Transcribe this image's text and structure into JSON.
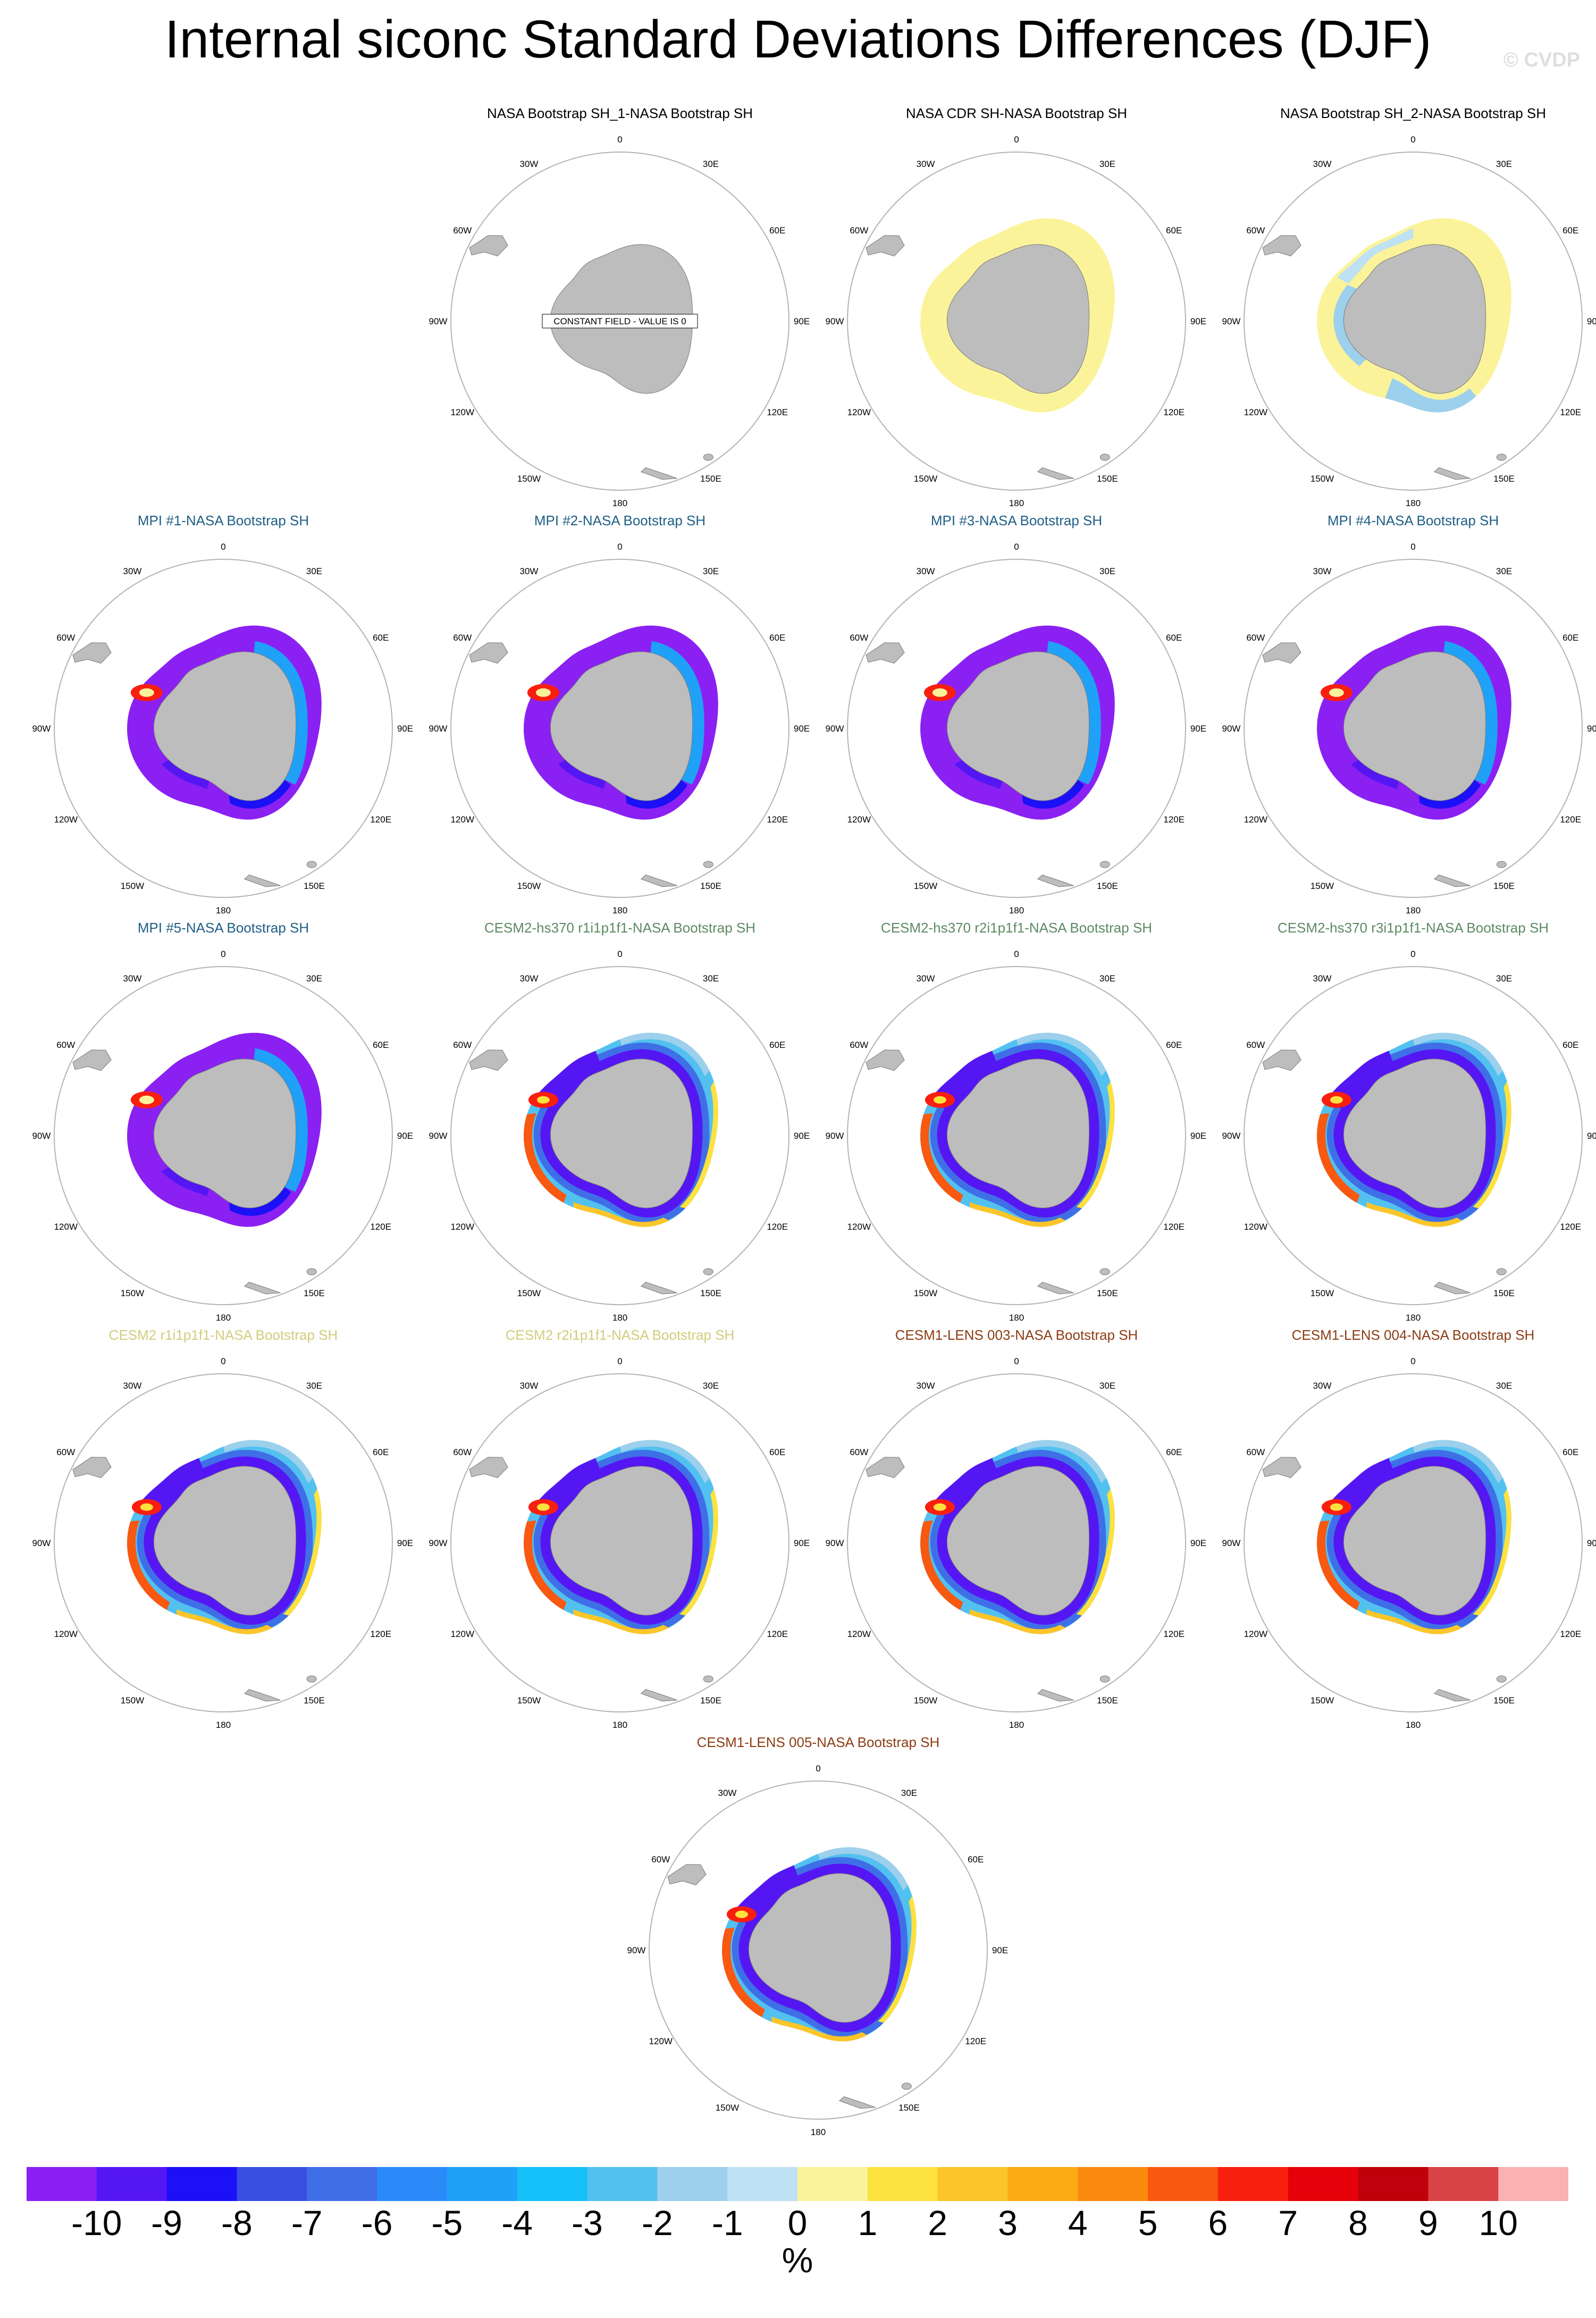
{
  "title": "Internal siconc Standard Deviations Differences (DJF)",
  "credit": "© CVDP",
  "longitude_labels": [
    "0",
    "30E",
    "60E",
    "90E",
    "120E",
    "150E",
    "180",
    "150W",
    "120W",
    "90W",
    "60W",
    "30W"
  ],
  "constant_field_label": "CONSTANT FIELD - VALUE IS 0",
  "colors": {
    "land": "#bdbdbd",
    "map_ring": "#b4b4b4",
    "title_obs": "#000000",
    "title_mpi": "#1f5f86",
    "title_cesm2hs": "#5d8a63",
    "title_cesm2": "#d1cc7c",
    "title_lens": "#8b3c13"
  },
  "panels": [
    {
      "title": "NASA Bootstrap SH_1-NASA Bootstrap SH",
      "group": "obs",
      "pattern": "constant"
    },
    {
      "title": "NASA CDR SH-NASA Bootstrap SH",
      "group": "obs",
      "pattern": "cdr"
    },
    {
      "title": "NASA Bootstrap SH_2-NASA Bootstrap SH",
      "group": "obs",
      "pattern": "boot2"
    },
    {
      "title": "MPI #1-NASA Bootstrap SH",
      "group": "mpi",
      "pattern": "mpi"
    },
    {
      "title": "MPI #2-NASA Bootstrap SH",
      "group": "mpi",
      "pattern": "mpi"
    },
    {
      "title": "MPI #3-NASA Bootstrap SH",
      "group": "mpi",
      "pattern": "mpi"
    },
    {
      "title": "MPI #4-NASA Bootstrap SH",
      "group": "mpi",
      "pattern": "mpi"
    },
    {
      "title": "MPI #5-NASA Bootstrap SH",
      "group": "mpi",
      "pattern": "mpi"
    },
    {
      "title": "CESM2-hs370 r1i1p1f1-NASA Bootstrap SH",
      "group": "cesm2hs",
      "pattern": "cesm"
    },
    {
      "title": "CESM2-hs370 r2i1p1f1-NASA Bootstrap SH",
      "group": "cesm2hs",
      "pattern": "cesm"
    },
    {
      "title": "CESM2-hs370 r3i1p1f1-NASA Bootstrap SH",
      "group": "cesm2hs",
      "pattern": "cesm"
    },
    {
      "title": "CESM2 r1i1p1f1-NASA Bootstrap SH",
      "group": "cesm2",
      "pattern": "cesm"
    },
    {
      "title": "CESM2 r2i1p1f1-NASA Bootstrap SH",
      "group": "cesm2",
      "pattern": "cesm"
    },
    {
      "title": "CESM1-LENS 003-NASA Bootstrap SH",
      "group": "lens",
      "pattern": "cesm"
    },
    {
      "title": "CESM1-LENS 004-NASA Bootstrap SH",
      "group": "lens",
      "pattern": "cesm"
    },
    {
      "title": "CESM1-LENS 005-NASA Bootstrap SH",
      "group": "lens",
      "pattern": "cesm"
    }
  ],
  "chart_data": {
    "type": "heatmap",
    "projection": "south polar stereographic",
    "title": "Internal siconc Standard Deviations Differences (DJF)",
    "units_label": "%",
    "colorbar_ticks": [
      "-10",
      "-9",
      "-8",
      "-7",
      "-6",
      "-5",
      "-4",
      "-3",
      "-2",
      "-1",
      "0",
      "1",
      "2",
      "3",
      "4",
      "5",
      "6",
      "7",
      "8",
      "9",
      "10"
    ],
    "colorbar_colors": [
      "#8a21f2",
      "#5516f4",
      "#1b10f6",
      "#3a4fe2",
      "#3f6fe6",
      "#2b8af8",
      "#1fa1f8",
      "#14c0f7",
      "#52c1f0",
      "#9dd0ec",
      "#bee1f4",
      "#fbf39a",
      "#fde13e",
      "#fcc529",
      "#fbab14",
      "#f98a0e",
      "#f85810",
      "#f91f0e",
      "#e60009",
      "#c0000a",
      "#d84346",
      "#f9b1b1"
    ],
    "panel_rows": 5,
    "panel_cols": 4
  }
}
